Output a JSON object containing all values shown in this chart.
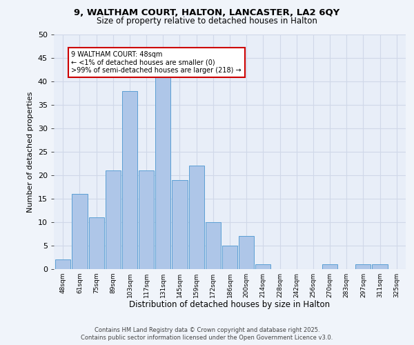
{
  "title_line1": "9, WALTHAM COURT, HALTON, LANCASTER, LA2 6QY",
  "title_line2": "Size of property relative to detached houses in Halton",
  "xlabel": "Distribution of detached houses by size in Halton",
  "ylabel": "Number of detached properties",
  "categories": [
    "48sqm",
    "61sqm",
    "75sqm",
    "89sqm",
    "103sqm",
    "117sqm",
    "131sqm",
    "145sqm",
    "159sqm",
    "172sqm",
    "186sqm",
    "200sqm",
    "214sqm",
    "228sqm",
    "242sqm",
    "256sqm",
    "270sqm",
    "283sqm",
    "297sqm",
    "311sqm",
    "325sqm"
  ],
  "values": [
    2,
    16,
    11,
    21,
    38,
    21,
    41,
    19,
    22,
    10,
    5,
    7,
    1,
    0,
    0,
    0,
    1,
    0,
    1,
    1,
    0
  ],
  "bar_color": "#aec6e8",
  "bar_edge_color": "#5a9fd4",
  "annotation_box_text": "9 WALTHAM COURT: 48sqm\n← <1% of detached houses are smaller (0)\n>99% of semi-detached houses are larger (218) →",
  "annotation_box_color": "#ffffff",
  "annotation_box_edge_color": "#cc0000",
  "grid_color": "#d0d8e8",
  "background_color": "#e8eef8",
  "fig_background_color": "#f0f4fa",
  "ylim": [
    0,
    50
  ],
  "yticks": [
    0,
    5,
    10,
    15,
    20,
    25,
    30,
    35,
    40,
    45,
    50
  ],
  "footer_line1": "Contains HM Land Registry data © Crown copyright and database right 2025.",
  "footer_line2": "Contains public sector information licensed under the Open Government Licence v3.0."
}
